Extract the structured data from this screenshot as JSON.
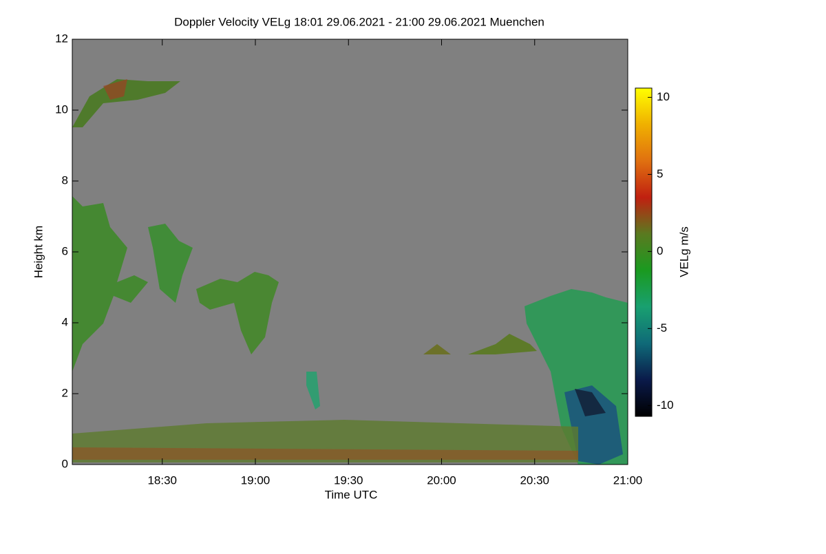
{
  "chart_data": {
    "type": "heatmap",
    "title": "Doppler Velocity VELg   18:01 29.06.2021 - 21:00 29.06.2021 Muenchen",
    "x_label": "Time UTC",
    "y_label": "Height km",
    "xlim": [
      1081,
      1260
    ],
    "xticks": [
      {
        "value": 1110,
        "label": "18:30"
      },
      {
        "value": 1140,
        "label": "19:00"
      },
      {
        "value": 1170,
        "label": "19:30"
      },
      {
        "value": 1200,
        "label": "20:00"
      },
      {
        "value": 1230,
        "label": "20:30"
      },
      {
        "value": 1260,
        "label": "21:00"
      }
    ],
    "ylim": [
      0,
      12
    ],
    "yticks": [
      0,
      2,
      4,
      6,
      8,
      10,
      12
    ],
    "background": "#808080",
    "colorbar": {
      "label": "VELg m/s",
      "lim": [
        -10.7,
        10.6
      ],
      "ticks": [
        -10,
        -5,
        0,
        5,
        10
      ],
      "colors": [
        "#000000",
        "#0a1a4a",
        "#0f6a78",
        "#19a070",
        "#1a9a20",
        "#5a7a20",
        "#c02010",
        "#e07010",
        "#f0b000",
        "#ffff00"
      ]
    }
  }
}
